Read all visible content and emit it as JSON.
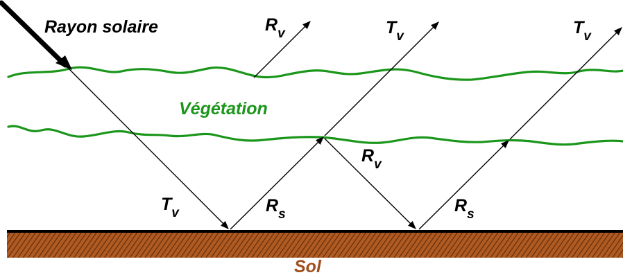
{
  "labels": {
    "sun_ray": "Rayon solaire",
    "vegetation": "Végétation",
    "soil": "Sol",
    "R": "R",
    "T": "T",
    "sub_v": "v",
    "sub_s": "s"
  },
  "colors": {
    "vegetation": "#1a961a",
    "soil": "#a0501e",
    "soil_dark": "#5a2a0a",
    "ground_line": "#000000",
    "ray": "#000000"
  }
}
